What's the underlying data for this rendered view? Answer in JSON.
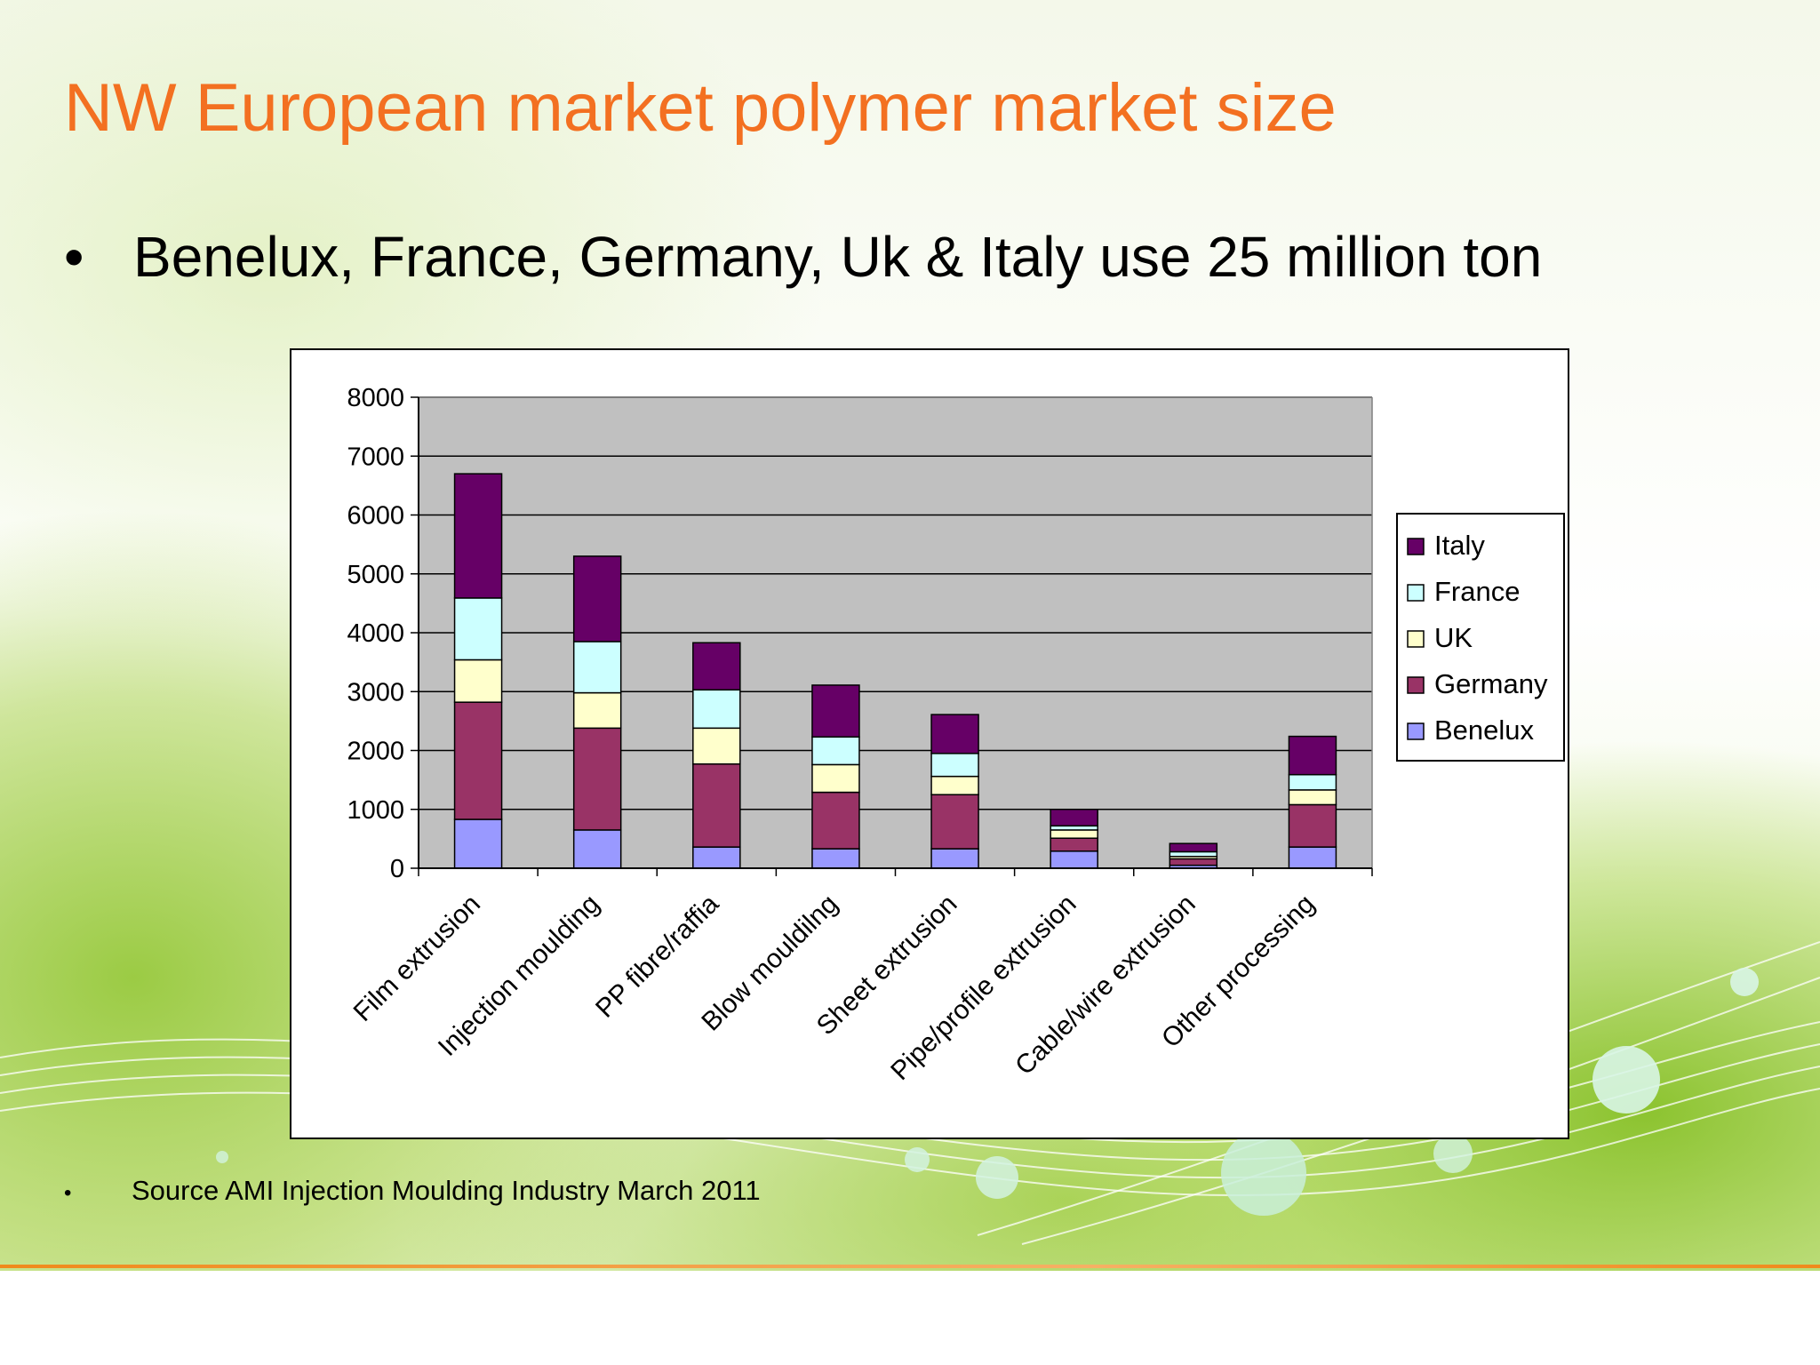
{
  "slide": {
    "title": "NW European market polymer market size",
    "bullet": "Benelux, France, Germany, Uk & Italy use 25 million ton",
    "source": "Source AMI Injection Moulding Industry  March 2011"
  },
  "chart_data": {
    "type": "bar",
    "stacked": true,
    "title": "",
    "xlabel": "",
    "ylabel": "",
    "ylim": [
      0,
      8000
    ],
    "yticks": [
      0,
      1000,
      2000,
      3000,
      4000,
      5000,
      6000,
      7000,
      8000
    ],
    "grid": true,
    "legend_position": "right",
    "categories": [
      "Film extrusion",
      "Injection moulding",
      "PP fibre/raffia",
      "Blow mouldilng",
      "Sheet extrusion",
      "Pipe/profile extrusion",
      "Cable/wire extrusion",
      "Other processing"
    ],
    "series": [
      {
        "name": "Benelux",
        "color": "#9999ff",
        "values": [
          830,
          650,
          360,
          330,
          330,
          290,
          50,
          360
        ]
      },
      {
        "name": "Germany",
        "color": "#993366",
        "values": [
          1990,
          1730,
          1410,
          960,
          920,
          220,
          110,
          720
        ]
      },
      {
        "name": "UK",
        "color": "#ffffcc",
        "values": [
          720,
          600,
          610,
          470,
          310,
          140,
          40,
          250
        ]
      },
      {
        "name": "France",
        "color": "#ccffff",
        "values": [
          1050,
          870,
          650,
          470,
          390,
          70,
          80,
          260
        ]
      },
      {
        "name": "Italy",
        "color": "#660066",
        "values": [
          2110,
          1450,
          800,
          880,
          660,
          280,
          140,
          650
        ]
      }
    ],
    "legend_order": [
      "Italy",
      "France",
      "UK",
      "Germany",
      "Benelux"
    ],
    "plot_background": "#c0c0c0"
  }
}
